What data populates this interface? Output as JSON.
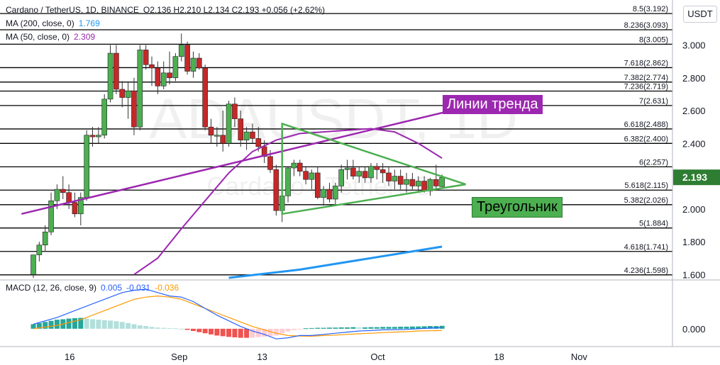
{
  "header": {
    "symbol": "Cardano / TetherUS, 1D, BINANCE",
    "ohlc": "O2.136 H2.210 L2.134 C2.193 +0.056 (+2.62%)",
    "ma200_label": "MA (200, close, 0)",
    "ma200_value": "1.769",
    "ma50_label": "MA (50, close, 0)",
    "ma50_value": "2.309",
    "unit": "USDT"
  },
  "macd": {
    "label": "MACD (12, 26, close, 9)",
    "v1": "0.005",
    "v2": "-0.031",
    "v3": "-0.036",
    "axis": "0.000"
  },
  "annotations": {
    "trend": "Линии тренда",
    "triangle": "Треугольник"
  },
  "watermark": {
    "main": "ADAUSDT, 1D",
    "sub": "Cardano / TetherUS"
  },
  "colors": {
    "up": "#26a69a",
    "down": "#ef5350",
    "up_fill": "#4caf50",
    "down_fill": "#c62828",
    "ma200": "#2196f3",
    "ma50": "#9c27b0",
    "trend": "#9c27b0",
    "triangle": "#4caf50",
    "macd_line": "#2962ff",
    "signal_line": "#ff9800",
    "last_price_bg": "#2e7d32"
  },
  "chart_data": {
    "type": "candlestick",
    "y_range": [
      1.58,
      3.24
    ],
    "price_ticks": [
      "3.000",
      "2.800",
      "2.600",
      "2.400",
      "2.200",
      "2.000",
      "1.800",
      "1.600"
    ],
    "price_tick_values": [
      3.0,
      2.8,
      2.6,
      2.4,
      2.2,
      2.0,
      1.8,
      1.6
    ],
    "x_ticks": [
      "16",
      "Sep",
      "13",
      "Oct",
      "18",
      "Nov"
    ],
    "last_price": "2.193",
    "fib_levels": [
      {
        "label": "8.5(3.192)",
        "value": 3.192
      },
      {
        "label": "8.236(3.093)",
        "value": 3.093
      },
      {
        "label": "8(3.005)",
        "value": 3.005
      },
      {
        "label": "7.618(2.862)",
        "value": 2.862
      },
      {
        "label": "7.382(2.774)",
        "value": 2.774
      },
      {
        "label": "7.236(2.719)",
        "value": 2.719
      },
      {
        "label": "7(2.631)",
        "value": 2.631
      },
      {
        "label": "6.618(2.488)",
        "value": 2.488
      },
      {
        "label": "6.382(2.400)",
        "value": 2.4
      },
      {
        "label": "6(2.257)",
        "value": 2.257
      },
      {
        "label": "5.618(2.115)",
        "value": 2.115
      },
      {
        "label": "5.382(2.026)",
        "value": 2.026
      },
      {
        "label": "5(1.884)",
        "value": 1.884
      },
      {
        "label": "4.618(1.741)",
        "value": 1.741
      },
      {
        "label": "4.236(1.598)",
        "value": 1.598
      }
    ],
    "candles": [
      [
        0,
        1.6,
        1.72,
        1.58,
        1.72
      ],
      [
        1,
        1.72,
        1.8,
        1.68,
        1.78
      ],
      [
        2,
        1.78,
        1.9,
        1.74,
        1.86
      ],
      [
        3,
        1.86,
        2.1,
        1.84,
        2.05
      ],
      [
        4,
        2.05,
        2.15,
        2.0,
        2.12
      ],
      [
        5,
        2.12,
        2.2,
        2.06,
        2.1
      ],
      [
        6,
        2.1,
        2.15,
        2.0,
        2.04
      ],
      [
        7,
        2.04,
        2.1,
        1.95,
        1.97
      ],
      [
        8,
        1.97,
        2.1,
        1.9,
        2.07
      ],
      [
        9,
        2.07,
        2.48,
        2.05,
        2.45
      ],
      [
        10,
        2.45,
        2.5,
        2.38,
        2.44
      ],
      [
        11,
        2.44,
        2.5,
        2.4,
        2.45
      ],
      [
        12,
        2.45,
        2.7,
        2.43,
        2.67
      ],
      [
        13,
        2.67,
        3.0,
        2.65,
        2.95
      ],
      [
        14,
        2.95,
        3.0,
        2.7,
        2.73
      ],
      [
        15,
        2.73,
        2.78,
        2.62,
        2.68
      ],
      [
        16,
        2.68,
        2.77,
        2.55,
        2.72
      ],
      [
        17,
        2.72,
        2.8,
        2.45,
        2.5
      ],
      [
        18,
        2.5,
        3.0,
        2.48,
        2.97
      ],
      [
        19,
        2.97,
        3.0,
        2.85,
        2.88
      ],
      [
        20,
        2.88,
        2.93,
        2.75,
        2.86
      ],
      [
        21,
        2.86,
        2.9,
        2.7,
        2.75
      ],
      [
        22,
        2.75,
        2.9,
        2.73,
        2.83
      ],
      [
        23,
        2.83,
        2.96,
        2.76,
        2.8
      ],
      [
        24,
        2.8,
        2.95,
        2.78,
        2.93
      ],
      [
        25,
        2.93,
        3.07,
        2.9,
        3.0
      ],
      [
        26,
        3.0,
        3.02,
        2.82,
        2.84
      ],
      [
        27,
        2.84,
        2.96,
        2.8,
        2.92
      ],
      [
        28,
        2.92,
        2.95,
        2.85,
        2.86
      ],
      [
        29,
        2.86,
        2.88,
        2.48,
        2.5
      ],
      [
        30,
        2.5,
        2.55,
        2.4,
        2.45
      ],
      [
        31,
        2.45,
        2.5,
        2.38,
        2.45
      ],
      [
        32,
        2.45,
        2.6,
        2.35,
        2.4
      ],
      [
        33,
        2.4,
        2.66,
        2.38,
        2.64
      ],
      [
        34,
        2.64,
        2.68,
        2.5,
        2.55
      ],
      [
        35,
        2.55,
        2.6,
        2.38,
        2.42
      ],
      [
        36,
        2.42,
        2.5,
        2.36,
        2.47
      ],
      [
        37,
        2.47,
        2.52,
        2.4,
        2.43
      ],
      [
        38,
        2.43,
        2.5,
        2.35,
        2.38
      ],
      [
        39,
        2.38,
        2.42,
        2.28,
        2.32
      ],
      [
        40,
        2.32,
        2.36,
        2.22,
        2.24
      ],
      [
        41,
        2.24,
        2.27,
        1.96,
        1.99
      ],
      [
        42,
        1.99,
        2.1,
        1.92,
        2.08
      ],
      [
        43,
        2.08,
        2.26,
        2.04,
        2.25
      ],
      [
        44,
        2.25,
        2.3,
        2.2,
        2.28
      ],
      [
        45,
        2.28,
        2.3,
        2.2,
        2.23
      ],
      [
        46,
        2.23,
        2.26,
        2.15,
        2.18
      ],
      [
        47,
        2.18,
        2.24,
        2.12,
        2.22
      ],
      [
        48,
        2.22,
        2.26,
        2.06,
        2.07
      ],
      [
        49,
        2.07,
        2.14,
        2.02,
        2.12
      ],
      [
        50,
        2.12,
        2.16,
        2.04,
        2.06
      ],
      [
        51,
        2.06,
        2.16,
        2.02,
        2.14
      ],
      [
        52,
        2.14,
        2.27,
        2.1,
        2.24
      ],
      [
        53,
        2.24,
        2.3,
        2.18,
        2.25
      ],
      [
        54,
        2.25,
        2.3,
        2.18,
        2.2
      ],
      [
        55,
        2.2,
        2.26,
        2.16,
        2.23
      ],
      [
        56,
        2.23,
        2.26,
        2.16,
        2.19
      ],
      [
        57,
        2.19,
        2.28,
        2.16,
        2.26
      ],
      [
        58,
        2.26,
        2.28,
        2.18,
        2.24
      ],
      [
        59,
        2.24,
        2.28,
        2.16,
        2.22
      ],
      [
        60,
        2.22,
        2.26,
        2.14,
        2.17
      ],
      [
        61,
        2.17,
        2.24,
        2.12,
        2.2
      ],
      [
        62,
        2.2,
        2.24,
        2.12,
        2.15
      ],
      [
        63,
        2.15,
        2.22,
        2.1,
        2.18
      ],
      [
        64,
        2.18,
        2.22,
        2.12,
        2.14
      ],
      [
        65,
        2.14,
        2.2,
        2.1,
        2.17
      ],
      [
        66,
        2.17,
        2.2,
        2.1,
        2.11
      ],
      [
        67,
        2.11,
        2.19,
        2.08,
        2.18
      ],
      [
        68,
        2.18,
        2.27,
        2.12,
        2.14
      ],
      [
        69,
        2.136,
        2.21,
        2.134,
        2.193
      ]
    ],
    "ma200": [
      [
        33,
        1.58
      ],
      [
        45,
        1.63
      ],
      [
        69,
        1.77
      ]
    ],
    "ma50": [
      [
        17,
        1.6
      ],
      [
        21,
        1.7
      ],
      [
        25,
        1.88
      ],
      [
        29,
        2.05
      ],
      [
        33,
        2.22
      ],
      [
        37,
        2.35
      ],
      [
        41,
        2.42
      ],
      [
        45,
        2.46
      ],
      [
        49,
        2.47
      ],
      [
        53,
        2.48
      ],
      [
        57,
        2.49
      ],
      [
        61,
        2.47
      ],
      [
        65,
        2.4
      ],
      [
        69,
        2.31
      ]
    ],
    "trend_line": [
      [
        -2,
        1.97
      ],
      [
        74,
        2.63
      ]
    ],
    "triangle": [
      [
        42,
        2.52
      ],
      [
        73,
        2.15
      ],
      [
        42,
        1.97
      ]
    ],
    "macd_line": [
      [
        0,
        0.02
      ],
      [
        4,
        0.05
      ],
      [
        8,
        0.09
      ],
      [
        12,
        0.13
      ],
      [
        15,
        0.16
      ],
      [
        17,
        0.17
      ],
      [
        19,
        0.175
      ],
      [
        21,
        0.16
      ],
      [
        23,
        0.145
      ],
      [
        25,
        0.14
      ],
      [
        27,
        0.12
      ],
      [
        29,
        0.09
      ],
      [
        31,
        0.06
      ],
      [
        33,
        0.035
      ],
      [
        35,
        0.01
      ],
      [
        37,
        -0.01
      ],
      [
        39,
        -0.025
      ],
      [
        41,
        -0.045
      ],
      [
        43,
        -0.04
      ],
      [
        45,
        -0.03
      ],
      [
        47,
        -0.03
      ],
      [
        49,
        -0.025
      ],
      [
        51,
        -0.02
      ],
      [
        53,
        -0.015
      ],
      [
        55,
        -0.01
      ],
      [
        57,
        -0.008
      ],
      [
        59,
        -0.005
      ],
      [
        61,
        -0.004
      ],
      [
        63,
        -0.003
      ],
      [
        65,
        0.0
      ],
      [
        67,
        0.003
      ],
      [
        69,
        0.005
      ]
    ],
    "signal_line": [
      [
        0,
        0.0
      ],
      [
        4,
        0.015
      ],
      [
        8,
        0.04
      ],
      [
        12,
        0.08
      ],
      [
        15,
        0.11
      ],
      [
        17,
        0.13
      ],
      [
        19,
        0.14
      ],
      [
        21,
        0.145
      ],
      [
        23,
        0.14
      ],
      [
        25,
        0.13
      ],
      [
        27,
        0.11
      ],
      [
        29,
        0.09
      ],
      [
        31,
        0.07
      ],
      [
        33,
        0.05
      ],
      [
        35,
        0.03
      ],
      [
        37,
        0.01
      ],
      [
        39,
        -0.005
      ],
      [
        41,
        -0.02
      ],
      [
        43,
        -0.03
      ],
      [
        45,
        -0.032
      ],
      [
        47,
        -0.033
      ],
      [
        49,
        -0.03
      ],
      [
        51,
        -0.028
      ],
      [
        53,
        -0.025
      ],
      [
        55,
        -0.022
      ],
      [
        57,
        -0.02
      ],
      [
        59,
        -0.017
      ],
      [
        61,
        -0.015
      ],
      [
        63,
        -0.013
      ],
      [
        65,
        -0.01
      ],
      [
        67,
        -0.009
      ],
      [
        69,
        -0.008
      ]
    ],
    "macd_hist": [
      0.02,
      0.025,
      0.03,
      0.035,
      0.04,
      0.042,
      0.045,
      0.047,
      0.048,
      0.045,
      0.042,
      0.04,
      0.038,
      0.036,
      0.033,
      0.03,
      0.025,
      0.02,
      0.015,
      0.012,
      0.008,
      0.005,
      0.004,
      0.003,
      0.002,
      0.0,
      -0.005,
      -0.01,
      -0.015,
      -0.02,
      -0.025,
      -0.03,
      -0.033,
      -0.036,
      -0.038,
      -0.04,
      -0.04,
      -0.039,
      -0.037,
      -0.035,
      -0.033,
      -0.03,
      -0.02,
      -0.012,
      -0.006,
      -0.003,
      0.002,
      0.003,
      0.004,
      0.004,
      0.005,
      0.005,
      0.006,
      0.006,
      0.007,
      0.006,
      0.006,
      0.007,
      0.007,
      0.008,
      0.008,
      0.008,
      0.009,
      0.009,
      0.01,
      0.01,
      0.011,
      0.012,
      0.012,
      0.013
    ],
    "macd_range": [
      -0.06,
      0.2
    ]
  }
}
